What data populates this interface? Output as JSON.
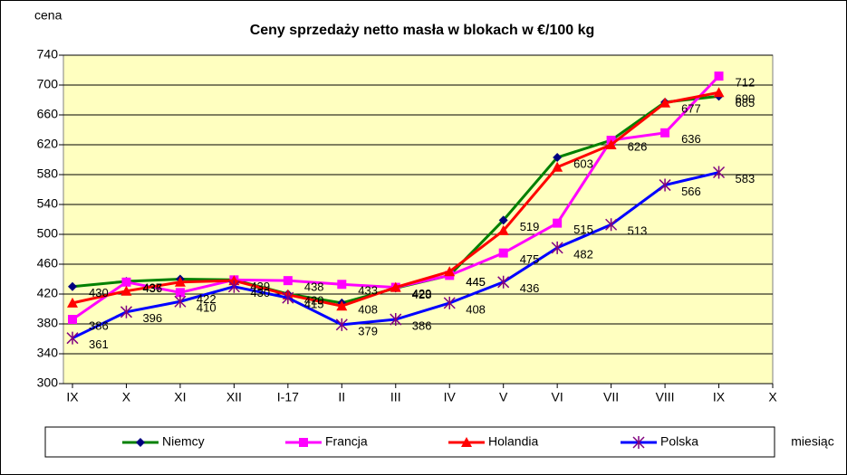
{
  "chart_data": {
    "type": "line",
    "title": "Ceny sprzedaży netto masła w blokach w €/100 kg",
    "y_label": "cena",
    "x_label": "miesiąc",
    "categories": [
      "IX",
      "X",
      "XI",
      "XII",
      "I-17",
      "II",
      "III",
      "IV",
      "V",
      "VI",
      "VII",
      "VIII",
      "IX",
      "X"
    ],
    "ylim": [
      300,
      740
    ],
    "yticks": [
      300,
      340,
      380,
      420,
      460,
      500,
      540,
      580,
      620,
      660,
      700,
      740
    ],
    "grid": true,
    "series": [
      {
        "name": "Niemcy",
        "color": "#008000",
        "marker": "diamond",
        "marker_color": "#000080",
        "values": [
          430,
          437,
          440,
          439,
          420,
          408,
          428,
          445,
          519,
          603,
          626,
          677,
          685,
          null
        ],
        "value_labels": [
          "430",
          "437",
          null,
          "439",
          "420",
          "408",
          "428",
          "445",
          "519",
          "603",
          "626",
          "677",
          "685",
          null
        ]
      },
      {
        "name": "Francja",
        "color": "#ff00ff",
        "marker": "square",
        "marker_color": "#ff00ff",
        "values": [
          386,
          436,
          422,
          439,
          438,
          433,
          429,
          445,
          475,
          515,
          626,
          636,
          712,
          null
        ],
        "value_labels": [
          "386",
          "436",
          "422",
          null,
          "438",
          "433",
          "429",
          "445",
          "475",
          "515",
          null,
          "636",
          "712",
          null
        ]
      },
      {
        "name": "Holandia",
        "color": "#ff0000",
        "marker": "triangle",
        "marker_color": "#ff0000",
        "values": [
          408,
          424,
          436,
          438,
          419,
          404,
          429,
          450,
          505,
          590,
          620,
          676,
          690,
          null
        ],
        "value_labels": [
          null,
          null,
          null,
          null,
          null,
          null,
          null,
          null,
          null,
          null,
          null,
          null,
          "690",
          null
        ]
      },
      {
        "name": "Polska",
        "color": "#0000ff",
        "marker": "star",
        "marker_color": "#800080",
        "values": [
          361,
          396,
          410,
          430,
          415,
          379,
          386,
          408,
          436,
          482,
          513,
          566,
          583,
          null
        ],
        "value_labels": [
          "361",
          "396",
          "410",
          "430",
          "415",
          "379",
          "386",
          "408",
          "436",
          "482",
          "513",
          "566",
          "583",
          null
        ]
      }
    ]
  }
}
